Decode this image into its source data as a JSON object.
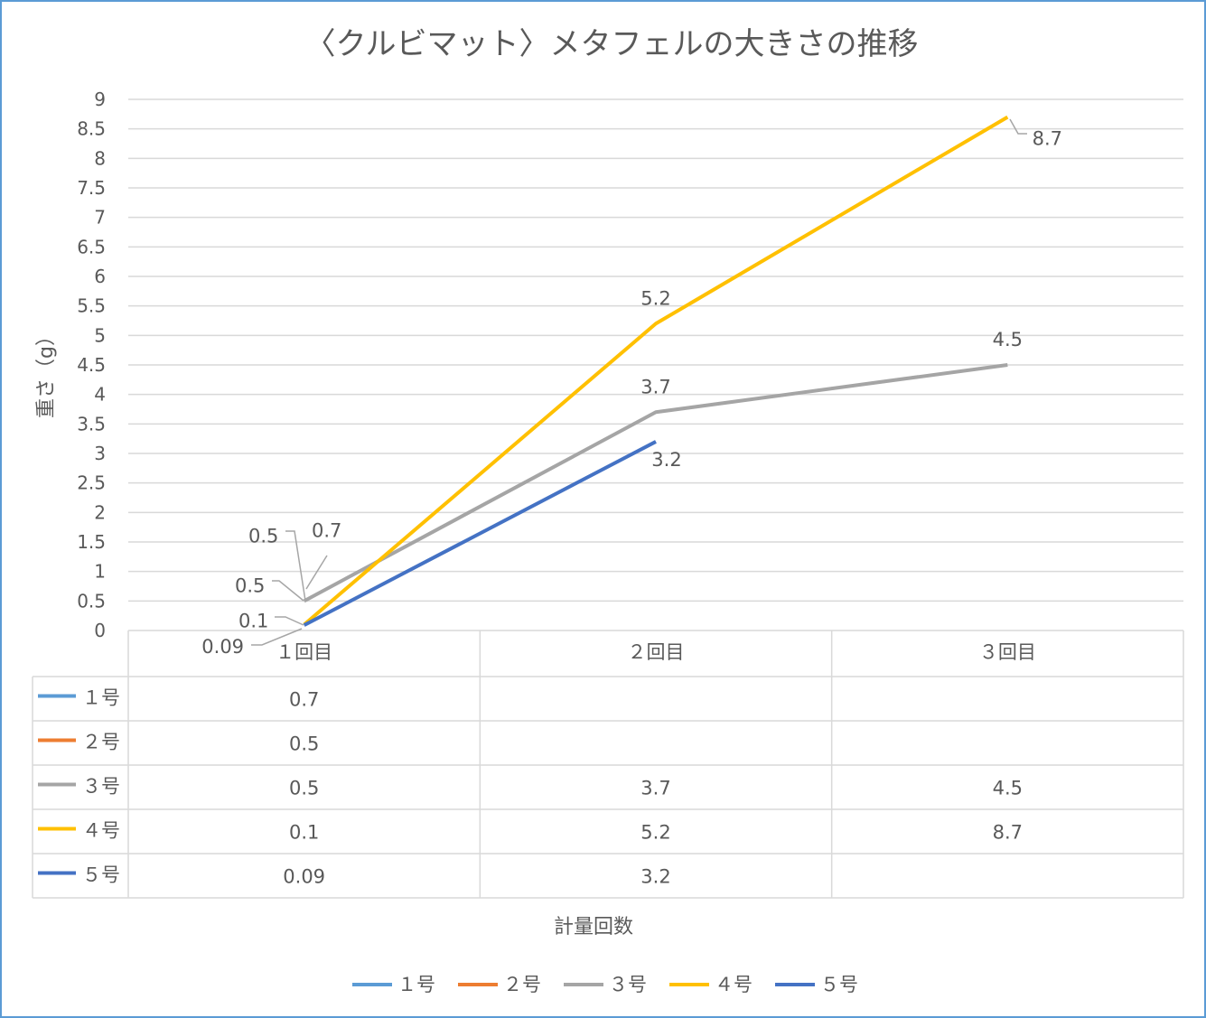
{
  "chart_data": {
    "type": "line",
    "title": "〈クルビマット〉メタフェルの大きさの推移",
    "xlabel": "計量回数",
    "ylabel": "重さ（g）",
    "categories": [
      "１回目",
      "２回目",
      "３回目"
    ],
    "ylim": [
      0,
      9
    ],
    "ytick_step": 0.5,
    "yticks": [
      "0",
      "0.5",
      "1",
      "1.5",
      "2",
      "2.5",
      "3",
      "3.5",
      "4",
      "4.5",
      "5",
      "5.5",
      "6",
      "6.5",
      "7",
      "7.5",
      "8",
      "8.5",
      "9"
    ],
    "grid": true,
    "legend_placement": "bottom",
    "data_table": true,
    "series": [
      {
        "name": "１号",
        "color": "#5b9bd5",
        "values": [
          0.7,
          null,
          null
        ],
        "labels": [
          "0.7",
          "",
          ""
        ]
      },
      {
        "name": "２号",
        "color": "#ed7d31",
        "values": [
          0.5,
          null,
          null
        ],
        "labels": [
          "0.5",
          "",
          ""
        ]
      },
      {
        "name": "３号",
        "color": "#a5a5a5",
        "values": [
          0.5,
          3.7,
          4.5
        ],
        "labels": [
          "0.5",
          "3.7",
          "4.5"
        ]
      },
      {
        "name": "４号",
        "color": "#ffc000",
        "values": [
          0.1,
          5.2,
          8.7
        ],
        "labels": [
          "0.1",
          "5.2",
          "8.7"
        ]
      },
      {
        "name": "５号",
        "color": "#4472c4",
        "values": [
          0.09,
          3.2,
          null
        ],
        "labels": [
          "0.09",
          "3.2",
          ""
        ]
      }
    ]
  }
}
